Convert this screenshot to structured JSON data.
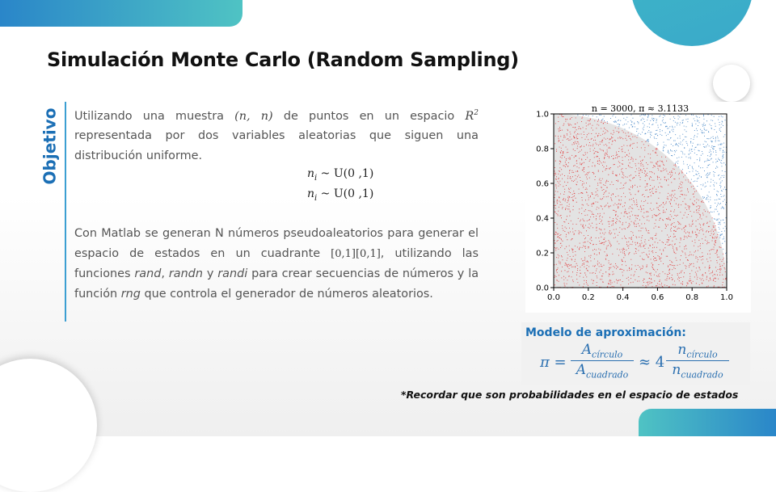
{
  "slide": {
    "title": "Simulación Monte Carlo (Random Sampling)",
    "side_label": "Objetivo",
    "paragraph1": {
      "t1": "Utilizando una muestra ",
      "sample": "(n, n)",
      "t2": " de puntos en un espacio ",
      "space": "R",
      "space_exp": "2",
      "t3": " representada por dos variables aleatorias que siguen una distribución uniforme."
    },
    "equations": [
      "n",
      "i",
      " ~ U(0 ,1)"
    ],
    "paragraph2": {
      "t1": "Con Matlab se generan N números pseudoaleatorios para generar el espacio de estados en un cuadrante ",
      "interval": "[0,1][0,1]",
      "t2": ", utilizando las funciones ",
      "f1": "rand",
      "sep1": ", ",
      "f2": "randn",
      "t3": " y ",
      "f3": "randi",
      "t4": " para crear secuencias de números y la función ",
      "f4": "rng",
      "t5": " que controla el generador de números aleatorios."
    },
    "model": {
      "title": "Modelo de aproximación:",
      "pi": "π =",
      "A_num": "A",
      "A_num_sub": "círculo",
      "A_den": "A",
      "A_den_sub": "cuadrado",
      "approx": "≈ 4",
      "n_num": "n",
      "n_num_sub": "círculo",
      "n_den": "n",
      "n_den_sub": "cuadrado"
    },
    "note": "*Recordar que son probabilidades en el espacio de estados"
  },
  "chart_data": {
    "type": "scatter",
    "title": "n = 3000, π ≈ 3.1133",
    "n_points": 3000,
    "pi_estimate": 3.1133,
    "xlim": [
      0.0,
      1.0
    ],
    "ylim": [
      0.0,
      1.0
    ],
    "xticks": [
      "0.0",
      "0.2",
      "0.4",
      "0.6",
      "0.8",
      "1.0"
    ],
    "yticks": [
      "0.0",
      "0.2",
      "0.4",
      "0.6",
      "0.8",
      "1.0"
    ],
    "series": [
      {
        "region": "inside quarter circle",
        "color": "#e0383a"
      },
      {
        "region": "outside quarter circle",
        "color": "#3a7fc2"
      }
    ],
    "quarter_circle_fill": "#e3e3e3",
    "grid": false
  }
}
